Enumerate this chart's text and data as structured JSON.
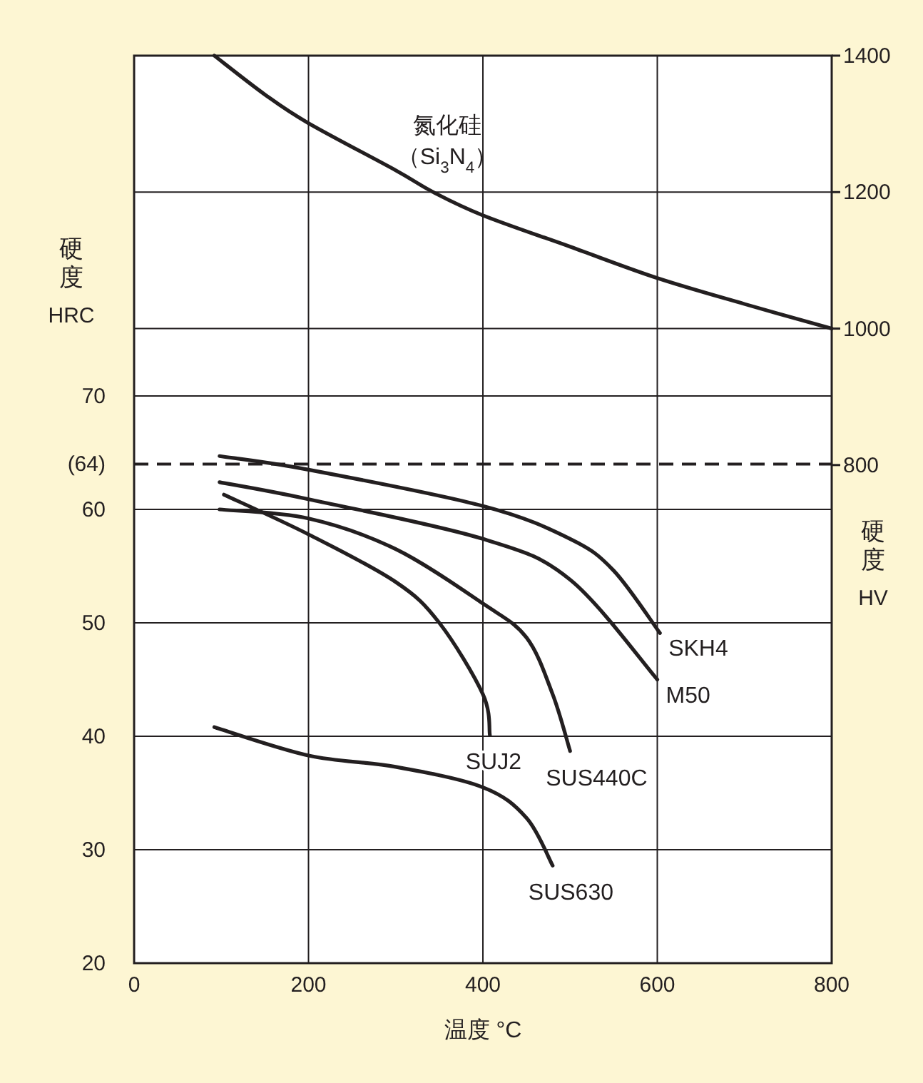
{
  "chart_data": {
    "type": "line",
    "xlabel": "温度 °C",
    "ylabel": "硬度 HRC",
    "y2label": "硬度 HV",
    "xlim": [
      0,
      800
    ],
    "xticks": [
      0,
      200,
      400,
      600,
      800
    ],
    "ylim": [
      20,
      100
    ],
    "yticks": [
      20,
      30,
      40,
      50,
      60,
      {
        "value": 64,
        "label": "(64)"
      },
      70
    ],
    "y2lim": [
      70,
      1400
    ],
    "y2ticks": [
      800,
      1000,
      1200,
      1400
    ],
    "grid": true,
    "line_style": "solid",
    "marker": "none",
    "ref_lines": [
      {
        "axis": "y",
        "value": 64,
        "line_style": "dashed",
        "color": "#231f20"
      }
    ],
    "series": [
      {
        "name": "氮化硅（Si$_{3}$N$_{4}$）",
        "color": "#231f20",
        "axis": "y2",
        "x": [
          92,
          150,
          200,
          300,
          343,
          400,
          500,
          600,
          700,
          800
        ],
        "values": [
          1400,
          1343,
          1301,
          1232,
          1200,
          1166,
          1120,
          1074,
          1036,
          1000
        ]
      },
      {
        "name": "SKH4",
        "color": "#231f20",
        "x": [
          98,
          200,
          400,
          500,
          550,
          603
        ],
        "values": [
          64.7,
          63.5,
          60.3,
          57.4,
          54.6,
          49.1
        ]
      },
      {
        "name": "M50",
        "color": "#231f20",
        "x": [
          98,
          200,
          400,
          500,
          600
        ],
        "values": [
          62.4,
          60.9,
          57.4,
          53.8,
          45.0
        ]
      },
      {
        "name": "SUS440C",
        "color": "#231f20",
        "x": [
          98,
          200,
          300,
          400,
          450,
          480,
          500
        ],
        "values": [
          60.0,
          59.2,
          56.5,
          51.7,
          48.7,
          43.7,
          38.7
        ]
      },
      {
        "name": "SUJ2",
        "color": "#231f20",
        "x": [
          103,
          200,
          300,
          350,
          400,
          408
        ],
        "values": [
          61.3,
          57.8,
          53.6,
          50.0,
          43.7,
          40.1
        ]
      },
      {
        "name": "SUS630",
        "color": "#231f20",
        "x": [
          92,
          200,
          300,
          400,
          450,
          480
        ],
        "values": [
          40.8,
          38.3,
          37.3,
          35.5,
          32.8,
          28.6
        ]
      }
    ]
  }
}
